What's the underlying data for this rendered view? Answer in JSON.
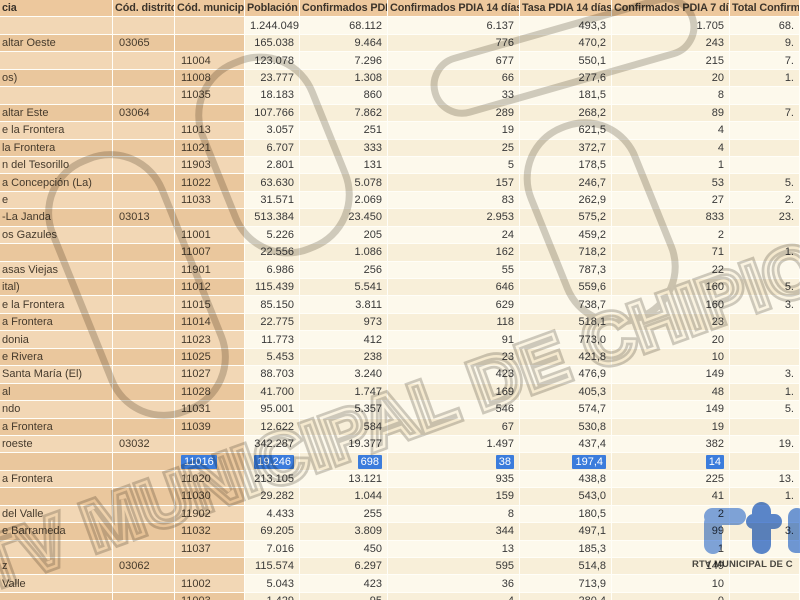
{
  "table": {
    "headers": [
      "cia",
      "Cód. distrito",
      "Cód. municipio",
      "Población",
      "Confirmados PDIA",
      "Confirmados PDIA 14 días",
      "Tasa PDIA 14 días",
      "Confirmados PDIA 7 días",
      "Total Confirma"
    ],
    "rows": [
      {
        "cells": [
          "",
          "",
          "",
          "1.244.049",
          "68.112",
          "6.137",
          "493,3",
          "1.705",
          "68."
        ]
      },
      {
        "cells": [
          "altar Oeste",
          "03065",
          "",
          "165.038",
          "9.464",
          "776",
          "470,2",
          "243",
          "9."
        ]
      },
      {
        "cells": [
          "",
          "",
          "11004",
          "123.078",
          "7.296",
          "677",
          "550,1",
          "215",
          "7."
        ]
      },
      {
        "cells": [
          "os)",
          "",
          "11008",
          "23.777",
          "1.308",
          "66",
          "277,6",
          "20",
          "1."
        ]
      },
      {
        "cells": [
          "",
          "",
          "11035",
          "18.183",
          "860",
          "33",
          "181,5",
          "8",
          ""
        ]
      },
      {
        "cells": [
          "altar Este",
          "03064",
          "",
          "107.766",
          "7.862",
          "289",
          "268,2",
          "89",
          "7."
        ]
      },
      {
        "cells": [
          "e la Frontera",
          "",
          "11013",
          "3.057",
          "251",
          "19",
          "621,5",
          "4",
          ""
        ]
      },
      {
        "cells": [
          "la Frontera",
          "",
          "11021",
          "6.707",
          "333",
          "25",
          "372,7",
          "4",
          ""
        ]
      },
      {
        "cells": [
          "n del Tesorillo",
          "",
          "11903",
          "2.801",
          "131",
          "5",
          "178,5",
          "1",
          ""
        ]
      },
      {
        "cells": [
          "a Concepción (La)",
          "",
          "11022",
          "63.630",
          "5.078",
          "157",
          "246,7",
          "53",
          "5."
        ]
      },
      {
        "cells": [
          "e",
          "",
          "11033",
          "31.571",
          "2.069",
          "83",
          "262,9",
          "27",
          "2."
        ]
      },
      {
        "cells": [
          "-La Janda",
          "03013",
          "",
          "513.384",
          "23.450",
          "2.953",
          "575,2",
          "833",
          "23."
        ]
      },
      {
        "cells": [
          "os Gazules",
          "",
          "11001",
          "5.226",
          "205",
          "24",
          "459,2",
          "2",
          ""
        ]
      },
      {
        "cells": [
          "",
          "",
          "11007",
          "22.556",
          "1.086",
          "162",
          "718,2",
          "71",
          "1."
        ]
      },
      {
        "cells": [
          "asas Viejas",
          "",
          "11901",
          "6.986",
          "256",
          "55",
          "787,3",
          "22",
          ""
        ]
      },
      {
        "cells": [
          "ital)",
          "",
          "11012",
          "115.439",
          "5.541",
          "646",
          "559,6",
          "160",
          "5."
        ]
      },
      {
        "cells": [
          "e la Frontera",
          "",
          "11015",
          "85.150",
          "3.811",
          "629",
          "738,7",
          "160",
          "3."
        ]
      },
      {
        "cells": [
          "a Frontera",
          "",
          "11014",
          "22.775",
          "973",
          "118",
          "518,1",
          "23",
          ""
        ]
      },
      {
        "cells": [
          "donia",
          "",
          "11023",
          "11.773",
          "412",
          "91",
          "773,0",
          "20",
          ""
        ]
      },
      {
        "cells": [
          "e Rivera",
          "",
          "11025",
          "5.453",
          "238",
          "23",
          "421,8",
          "10",
          ""
        ]
      },
      {
        "cells": [
          "Santa María (El)",
          "",
          "11027",
          "88.703",
          "3.240",
          "423",
          "476,9",
          "149",
          "3."
        ]
      },
      {
        "cells": [
          "al",
          "",
          "11028",
          "41.700",
          "1.747",
          "169",
          "405,3",
          "48",
          "1."
        ]
      },
      {
        "cells": [
          "ndo",
          "",
          "11031",
          "95.001",
          "5.357",
          "546",
          "574,7",
          "149",
          "5."
        ]
      },
      {
        "cells": [
          "a Frontera",
          "",
          "11039",
          "12.622",
          "584",
          "67",
          "530,8",
          "19",
          ""
        ]
      },
      {
        "cells": [
          "roeste",
          "03032",
          "",
          "342.287",
          "19.377",
          "1.497",
          "437,4",
          "382",
          "19."
        ]
      },
      {
        "cells": [
          "",
          "",
          "11016",
          "19.246",
          "698",
          "38",
          "197,4",
          "14",
          ""
        ],
        "highlight": true
      },
      {
        "cells": [
          "a Frontera",
          "",
          "11020",
          "213.105",
          "13.121",
          "935",
          "438,8",
          "225",
          "13."
        ]
      },
      {
        "cells": [
          "",
          "",
          "11030",
          "29.282",
          "1.044",
          "159",
          "543,0",
          "41",
          "1."
        ]
      },
      {
        "cells": [
          "del Valle",
          "",
          "11902",
          "4.433",
          "255",
          "8",
          "180,5",
          "2",
          ""
        ]
      },
      {
        "cells": [
          "e Barrameda",
          "",
          "11032",
          "69.205",
          "3.809",
          "344",
          "497,1",
          "99",
          "3."
        ]
      },
      {
        "cells": [
          "",
          "",
          "11037",
          "7.016",
          "450",
          "13",
          "185,3",
          "1",
          ""
        ]
      },
      {
        "cells": [
          "z",
          "03062",
          "",
          "115.574",
          "6.297",
          "595",
          "514,8",
          "149",
          ""
        ]
      },
      {
        "cells": [
          "Valle",
          "",
          "11002",
          "5.043",
          "423",
          "36",
          "713,9",
          "10",
          ""
        ]
      },
      {
        "cells": [
          "",
          "",
          "11003",
          "1.429",
          "95",
          "4",
          "280,4",
          "0",
          ""
        ]
      }
    ]
  },
  "selection": {
    "selected_municipality_code": "11016",
    "highlight_color": "#3b7cdc"
  },
  "watermark": {
    "text": "RTV MUNICIPAL DE CHIPIONA"
  },
  "logo": {
    "caption": "RTV MUNICIPAL DE C",
    "blue_light": "#7fa6e8",
    "blue_dark": "#5b88d8"
  },
  "colors": {
    "header_tan": "#edc89d",
    "row_tan_light": "#f2d7b5",
    "row_tan_dark": "#eac79d",
    "row_cream_light": "#fdf9ec",
    "row_cream_dark": "#f8efd9",
    "selection_blue": "#3b7cdc"
  }
}
